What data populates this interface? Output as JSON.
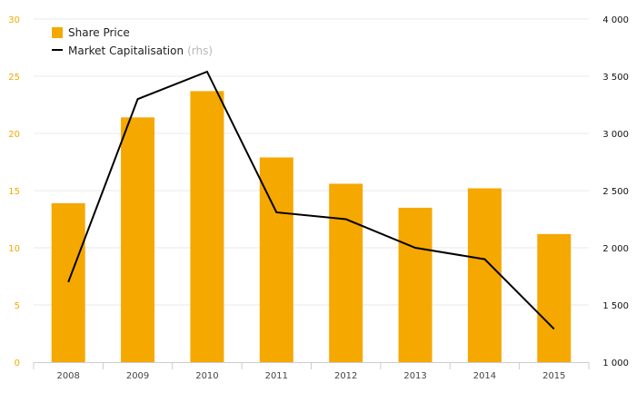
{
  "chart_data": {
    "type": "bar+line",
    "categories": [
      "2008",
      "2009",
      "2010",
      "2011",
      "2012",
      "2013",
      "2014",
      "2015"
    ],
    "series": [
      {
        "name": "Share Price",
        "type": "bar",
        "axis": "left",
        "color": "#f5a800",
        "values": [
          13.9,
          21.4,
          23.7,
          17.9,
          15.6,
          13.5,
          15.2,
          11.2
        ]
      },
      {
        "name": "Market Capitalisation",
        "name_suffix": "(rhs)",
        "type": "line",
        "axis": "right",
        "color": "#000000",
        "values": [
          1700,
          3300,
          3540,
          2310,
          2250,
          2000,
          1900,
          1290
        ]
      }
    ],
    "y_left": {
      "range": [
        0,
        30
      ],
      "ticks": [
        "0",
        "5",
        "10",
        "15",
        "20",
        "25",
        "30"
      ],
      "color": "#f5a800"
    },
    "y_right": {
      "range": [
        1000,
        4000
      ],
      "ticks": [
        "1 000",
        "1 500",
        "2 000",
        "2 500",
        "3 000",
        "3 500",
        "4 000"
      ]
    },
    "grid": "horizontal",
    "legend_position": "top-left"
  }
}
